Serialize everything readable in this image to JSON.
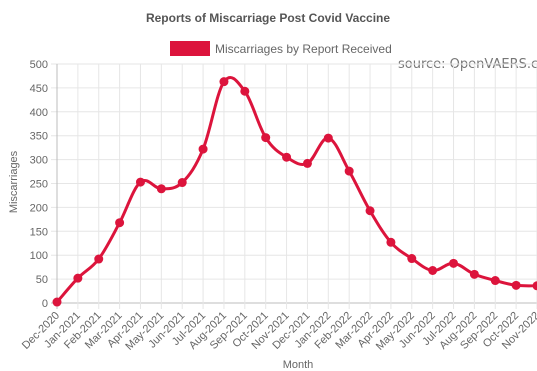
{
  "chart_data": {
    "type": "line",
    "title": "Reports of Miscarriage Post Covid Vaccine",
    "source_note": "source: OpenVAERS.com",
    "xlabel": "Month",
    "ylabel": "Miscarriages",
    "ylim": [
      0,
      500
    ],
    "yticks": [
      0,
      50,
      100,
      150,
      200,
      250,
      300,
      350,
      400,
      450,
      500
    ],
    "grid": true,
    "legend_position": "top",
    "categories": [
      "Dec-2020",
      "Jan-2021",
      "Feb-2021",
      "Mar-2021",
      "Apr-2021",
      "May-2021",
      "Jun-2021",
      "Jul-2021",
      "Aug-2021",
      "Sep-2021",
      "Oct-2021",
      "Nov-2021",
      "Dec-2021",
      "Jan-2022",
      "Feb-2022",
      "Mar-2022",
      "Apr-2022",
      "May-2022",
      "Jun-2022",
      "Jul-2022",
      "Aug-2022",
      "Sep-2022",
      "Oct-2022",
      "Nov-2022"
    ],
    "series": [
      {
        "name": "Miscarriages by Report Received",
        "color": "#dc143c",
        "values": [
          2,
          52,
          92,
          168,
          253,
          239,
          252,
          322,
          463,
          443,
          346,
          305,
          292,
          345,
          276,
          193,
          127,
          93,
          68,
          83,
          60,
          47,
          37,
          36
        ]
      }
    ]
  }
}
